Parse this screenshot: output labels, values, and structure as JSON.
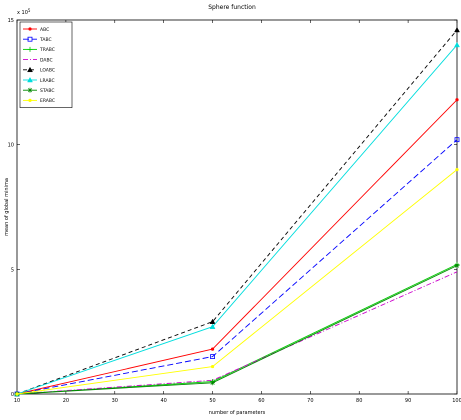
{
  "chart_data": {
    "type": "line",
    "title": "Sphere function",
    "xlabel": "number of parameters",
    "ylabel": "mean of global minima",
    "exponent_label": "x 10",
    "exponent_sup": "5",
    "x": [
      10,
      50,
      100
    ],
    "xlim": [
      10,
      100
    ],
    "ylim": [
      0,
      15
    ],
    "xticks": [
      "10",
      "20",
      "30",
      "40",
      "50",
      "60",
      "70",
      "80",
      "90",
      "100"
    ],
    "yticks": [
      "0",
      "5",
      "10",
      "15"
    ],
    "legend_position": "top-left",
    "series": [
      {
        "name": "ABC",
        "values": [
          0.0,
          1.8,
          11.8
        ],
        "color": "#ff0000",
        "dash": "",
        "marker": "point"
      },
      {
        "name": "TABC",
        "values": [
          0.0,
          1.5,
          10.2
        ],
        "color": "#0000ff",
        "dash": "6,3",
        "marker": "square"
      },
      {
        "name": "TRABC",
        "values": [
          0.0,
          0.5,
          5.2
        ],
        "color": "#00cc00",
        "dash": "",
        "marker": "plus"
      },
      {
        "name": "DABC",
        "values": [
          0.0,
          0.55,
          4.9
        ],
        "color": "#cc00cc",
        "dash": "5,2,1,2",
        "marker": "none"
      },
      {
        "name": "LOABC",
        "values": [
          0.0,
          2.9,
          14.6
        ],
        "color": "#000000",
        "dash": "4,3",
        "marker": "triangle"
      },
      {
        "name": "LRABC",
        "values": [
          0.0,
          2.7,
          14.0
        ],
        "color": "#00dddd",
        "dash": "",
        "marker": "triangle"
      },
      {
        "name": "STABC",
        "values": [
          0.0,
          0.45,
          5.15
        ],
        "color": "#008800",
        "dash": "",
        "marker": "star"
      },
      {
        "name": "ERABC",
        "values": [
          0.0,
          1.1,
          9.0
        ],
        "color": "#ffff00",
        "dash": "",
        "marker": "point"
      }
    ]
  }
}
